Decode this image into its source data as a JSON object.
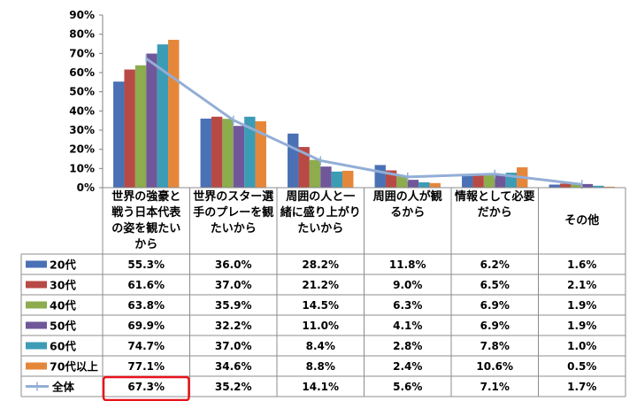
{
  "chart_data": {
    "type": "bar",
    "ylim": [
      0,
      90
    ],
    "yticks": [
      "0%",
      "10%",
      "20%",
      "30%",
      "40%",
      "50%",
      "60%",
      "70%",
      "80%",
      "90%"
    ],
    "grid": false,
    "legend": "table-left",
    "categories": [
      [
        "世界の強豪と",
        "戦う日本代表",
        "の姿を観たい",
        "から"
      ],
      [
        "世界のスター選",
        "手のプレーを観",
        "たいから"
      ],
      [
        "周囲の人と一",
        "緒に盛り上がり",
        "たいから"
      ],
      [
        "周囲の人が観",
        "るから"
      ],
      [
        "情報として必要",
        "だから"
      ],
      [
        "その他"
      ]
    ],
    "series": [
      {
        "name": "20代",
        "color": "#4a71b5",
        "values": [
          55.3,
          36.0,
          28.2,
          11.8,
          6.2,
          1.6
        ],
        "labels": [
          "55.3%",
          "36.0%",
          "28.2%",
          "11.8%",
          "6.2%",
          "1.6%"
        ]
      },
      {
        "name": "30代",
        "color": "#b84a45",
        "values": [
          61.6,
          37.0,
          21.2,
          9.0,
          6.5,
          2.1
        ],
        "labels": [
          "61.6%",
          "37.0%",
          "21.2%",
          "9.0%",
          "6.5%",
          "2.1%"
        ]
      },
      {
        "name": "40代",
        "color": "#8cac4e",
        "values": [
          63.8,
          35.9,
          14.5,
          6.3,
          6.9,
          1.9
        ],
        "labels": [
          "63.8%",
          "35.9%",
          "14.5%",
          "6.3%",
          "6.9%",
          "1.9%"
        ]
      },
      {
        "name": "50代",
        "color": "#70579a",
        "values": [
          69.9,
          32.2,
          11.0,
          4.1,
          6.9,
          1.9
        ],
        "labels": [
          "69.9%",
          "32.2%",
          "11.0%",
          "4.1%",
          "6.9%",
          "1.9%"
        ]
      },
      {
        "name": "60代",
        "color": "#3c9cb6",
        "values": [
          74.7,
          37.0,
          8.4,
          2.8,
          7.8,
          1.0
        ],
        "labels": [
          "74.7%",
          "37.0%",
          "8.4%",
          "2.8%",
          "7.8%",
          "1.0%"
        ]
      },
      {
        "name": "70代以上",
        "color": "#e5873a",
        "values": [
          77.1,
          34.6,
          8.8,
          2.4,
          10.6,
          0.5
        ],
        "labels": [
          "77.1%",
          "34.6%",
          "8.8%",
          "2.4%",
          "10.6%",
          "0.5%"
        ]
      }
    ],
    "total_line": {
      "name": "全体",
      "color": "#93aed6",
      "values": [
        67.3,
        35.2,
        14.1,
        5.6,
        7.1,
        1.7
      ],
      "labels": [
        "67.3%",
        "35.2%",
        "14.1%",
        "5.6%",
        "7.1%",
        "1.7%"
      ]
    },
    "highlight": {
      "row": "全体",
      "column": 0,
      "color": "#e8131b"
    }
  }
}
